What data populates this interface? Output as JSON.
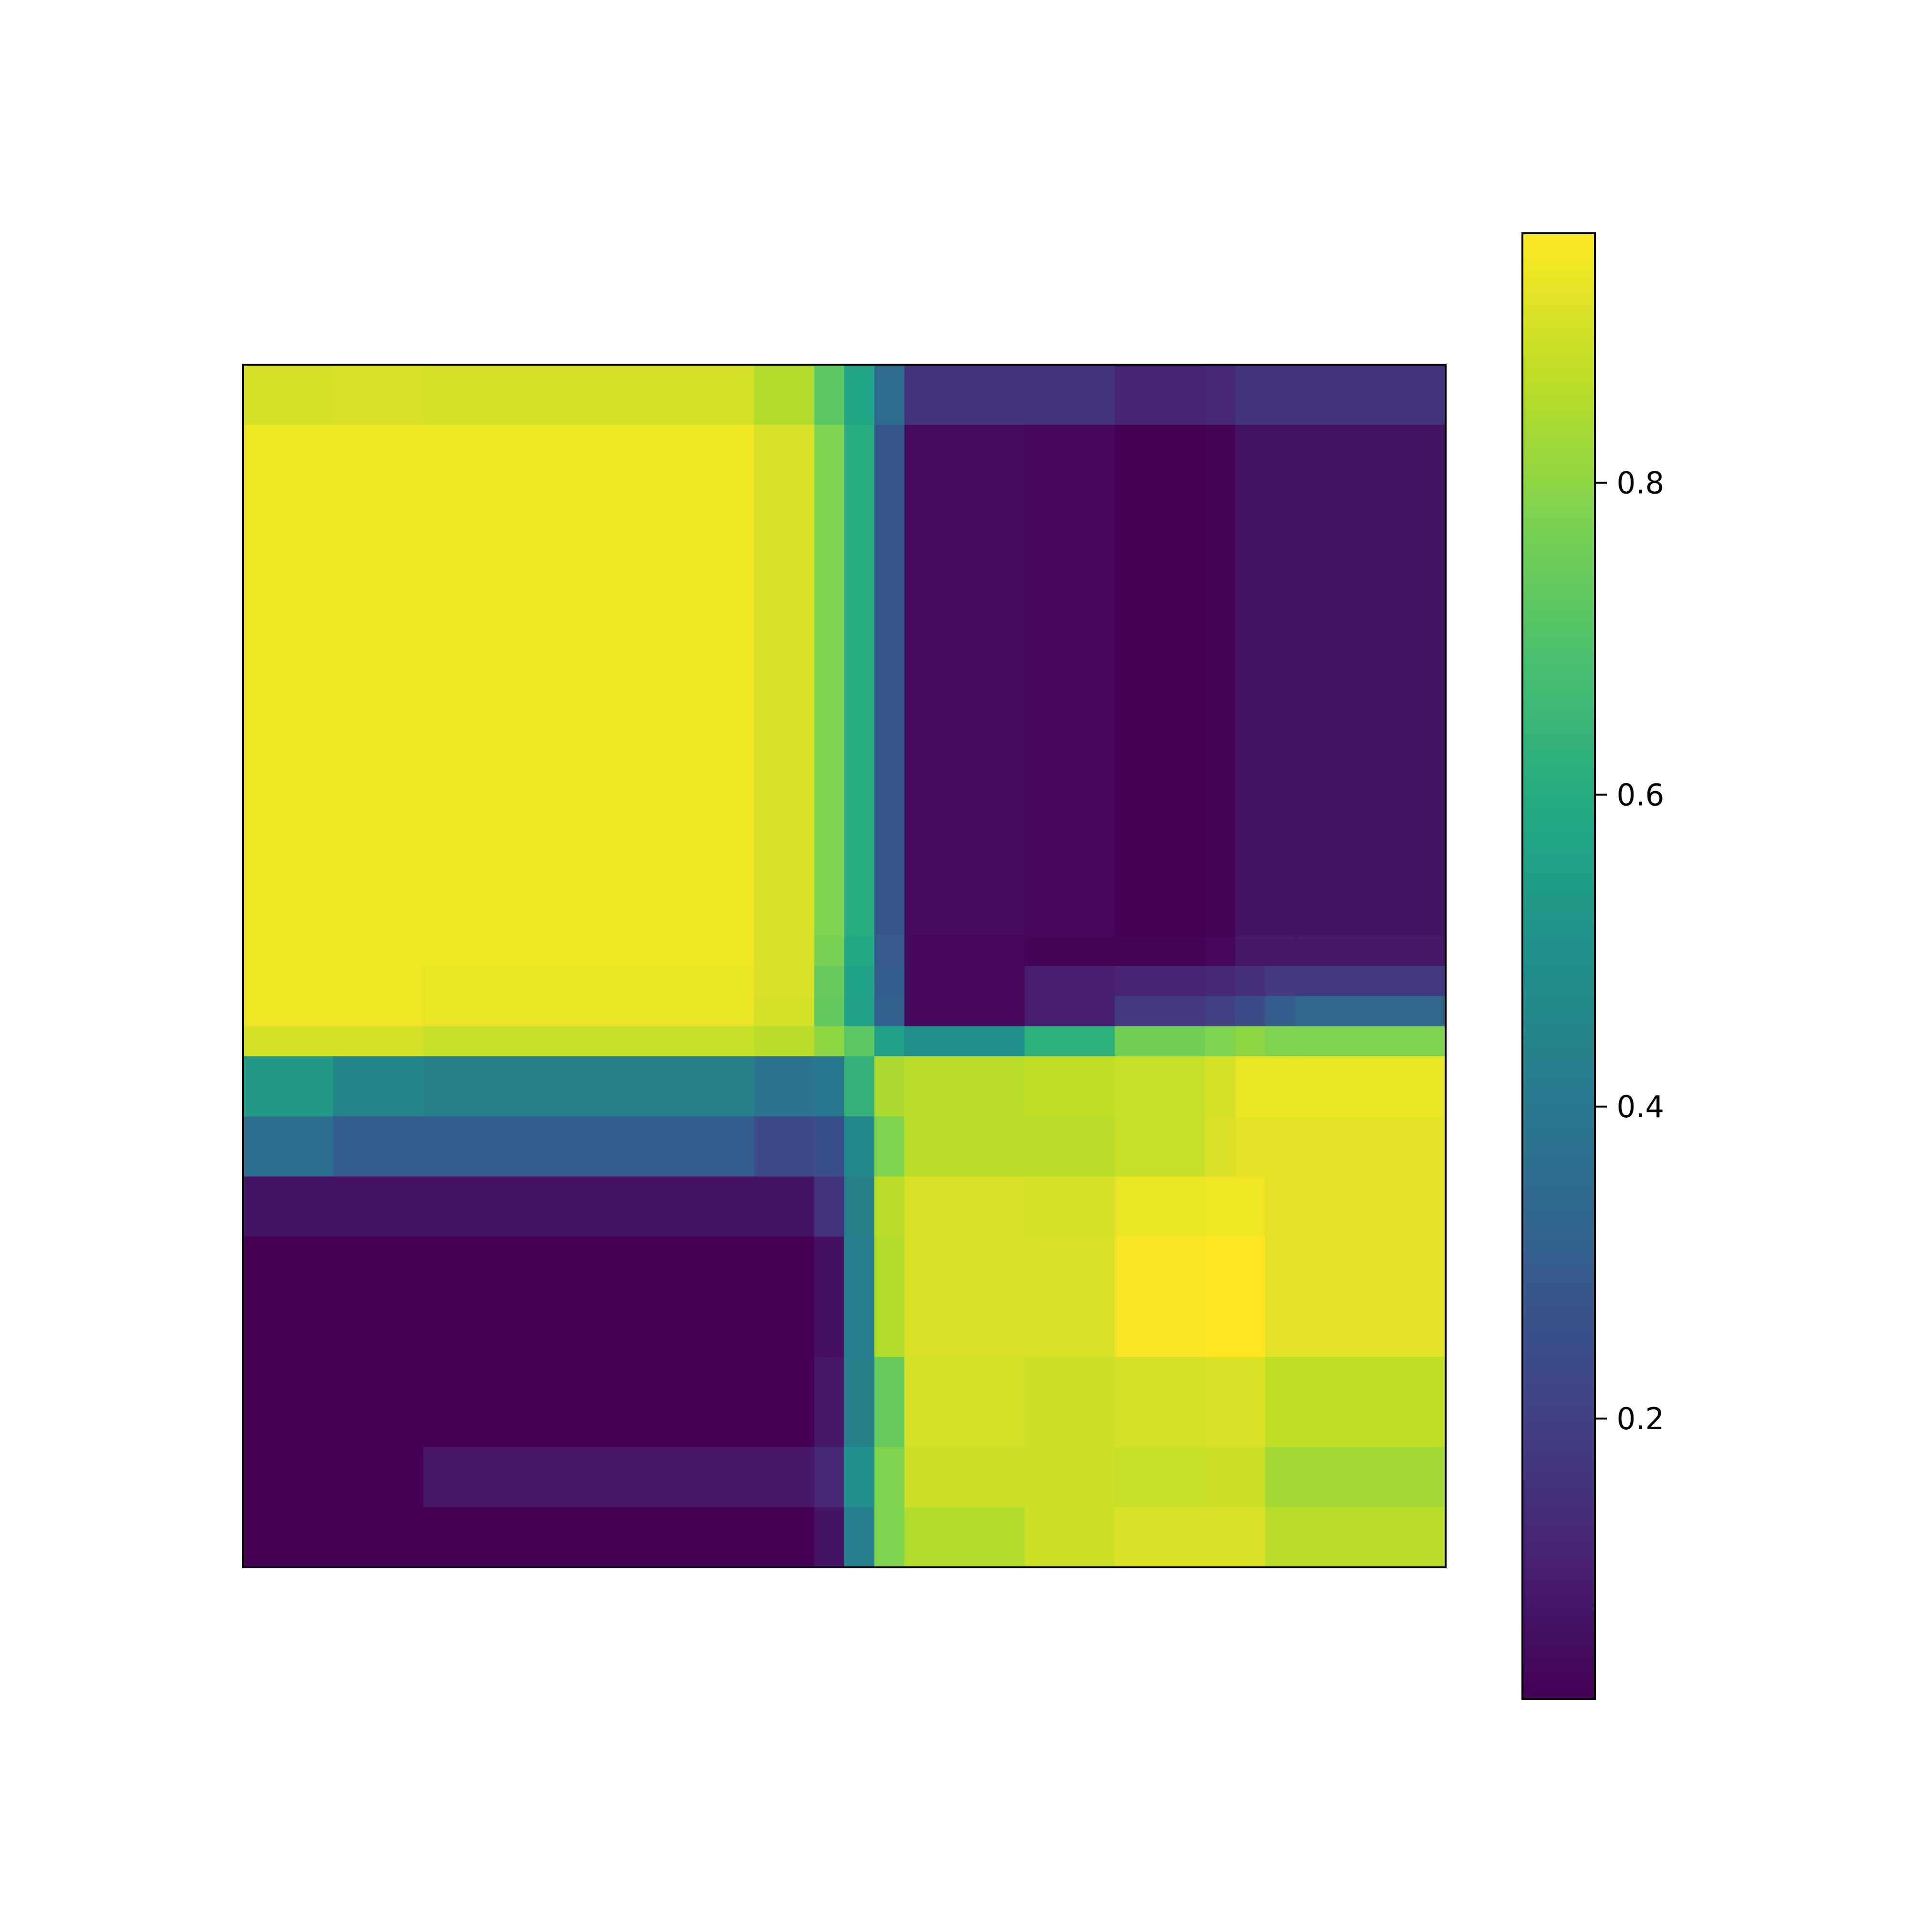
{
  "chart_data": {
    "type": "heatmap",
    "title": "",
    "xlabel": "",
    "ylabel": "",
    "rows": 40,
    "cols": 40,
    "cmap": "viridis",
    "row_groups": [
      {
        "label": "",
        "rows": [
          0,
          1
        ]
      },
      {
        "label": "",
        "rows": [
          2,
          20
        ]
      },
      {
        "label": "",
        "rows": [
          21,
          40
        ]
      }
    ],
    "col_band_edges": [
      0,
      3,
      6,
      17,
      19,
      20,
      21,
      22,
      26,
      29,
      32,
      33,
      34,
      35,
      40
    ],
    "row_values": [
      [
        0.9,
        0.91,
        0.9,
        0.85,
        0.72,
        0.57,
        0.35,
        0.16,
        0.16,
        0.11,
        0.13,
        0.16,
        0.16,
        0.16
      ],
      [
        0.94,
        0.94,
        0.94,
        0.91,
        0.78,
        0.6,
        0.28,
        0.05,
        0.04,
        0.02,
        0.03,
        0.07,
        0.07,
        0.07
      ],
      [
        0.94,
        0.94,
        0.94,
        0.91,
        0.77,
        0.58,
        0.29,
        0.04,
        0.03,
        0.03,
        0.04,
        0.08,
        0.08,
        0.08
      ],
      [
        0.94,
        0.94,
        0.93,
        0.91,
        0.74,
        0.56,
        0.3,
        0.04,
        0.1,
        0.11,
        0.13,
        0.15,
        0.18,
        0.18
      ],
      [
        0.94,
        0.94,
        0.93,
        0.9,
        0.73,
        0.55,
        0.31,
        0.04,
        0.1,
        0.18,
        0.2,
        0.24,
        0.3,
        0.33
      ],
      [
        0.9,
        0.9,
        0.88,
        0.86,
        0.8,
        0.72,
        0.55,
        0.5,
        0.62,
        0.76,
        0.78,
        0.8,
        0.78,
        0.78
      ],
      [
        0.53,
        0.45,
        0.43,
        0.38,
        0.4,
        0.63,
        0.84,
        0.86,
        0.87,
        0.88,
        0.9,
        0.93,
        0.93,
        0.93
      ],
      [
        0.36,
        0.3,
        0.3,
        0.23,
        0.25,
        0.46,
        0.78,
        0.86,
        0.86,
        0.88,
        0.91,
        0.92,
        0.92,
        0.92
      ],
      [
        0.07,
        0.07,
        0.07,
        0.07,
        0.16,
        0.43,
        0.86,
        0.91,
        0.9,
        0.93,
        0.94,
        0.94,
        0.92,
        0.92
      ],
      [
        0.02,
        0.02,
        0.02,
        0.02,
        0.06,
        0.42,
        0.85,
        0.91,
        0.91,
        0.95,
        0.96,
        0.96,
        0.92,
        0.92
      ],
      [
        0.02,
        0.02,
        0.02,
        0.02,
        0.08,
        0.43,
        0.74,
        0.9,
        0.89,
        0.9,
        0.91,
        0.91,
        0.87,
        0.87
      ],
      [
        0.02,
        0.02,
        0.08,
        0.08,
        0.13,
        0.49,
        0.78,
        0.89,
        0.89,
        0.88,
        0.89,
        0.89,
        0.83,
        0.83
      ],
      [
        0.02,
        0.02,
        0.02,
        0.02,
        0.07,
        0.42,
        0.78,
        0.85,
        0.89,
        0.91,
        0.91,
        0.91,
        0.86,
        0.86
      ]
    ],
    "row_band_edges": [
      0,
      2,
      19,
      20,
      21,
      22,
      23,
      25,
      27,
      29,
      33,
      36,
      38,
      40
    ],
    "colorbar": {
      "vmin": 0.02,
      "vmax": 0.96,
      "ticks": [
        0.2,
        0.4,
        0.6,
        0.8
      ],
      "tick_labels": [
        "0.2",
        "0.4",
        "0.6",
        "0.8"
      ]
    },
    "grid": false,
    "legend": "colorbar-right"
  },
  "colors": {
    "background": "#ffffff",
    "frame": "#000000"
  }
}
